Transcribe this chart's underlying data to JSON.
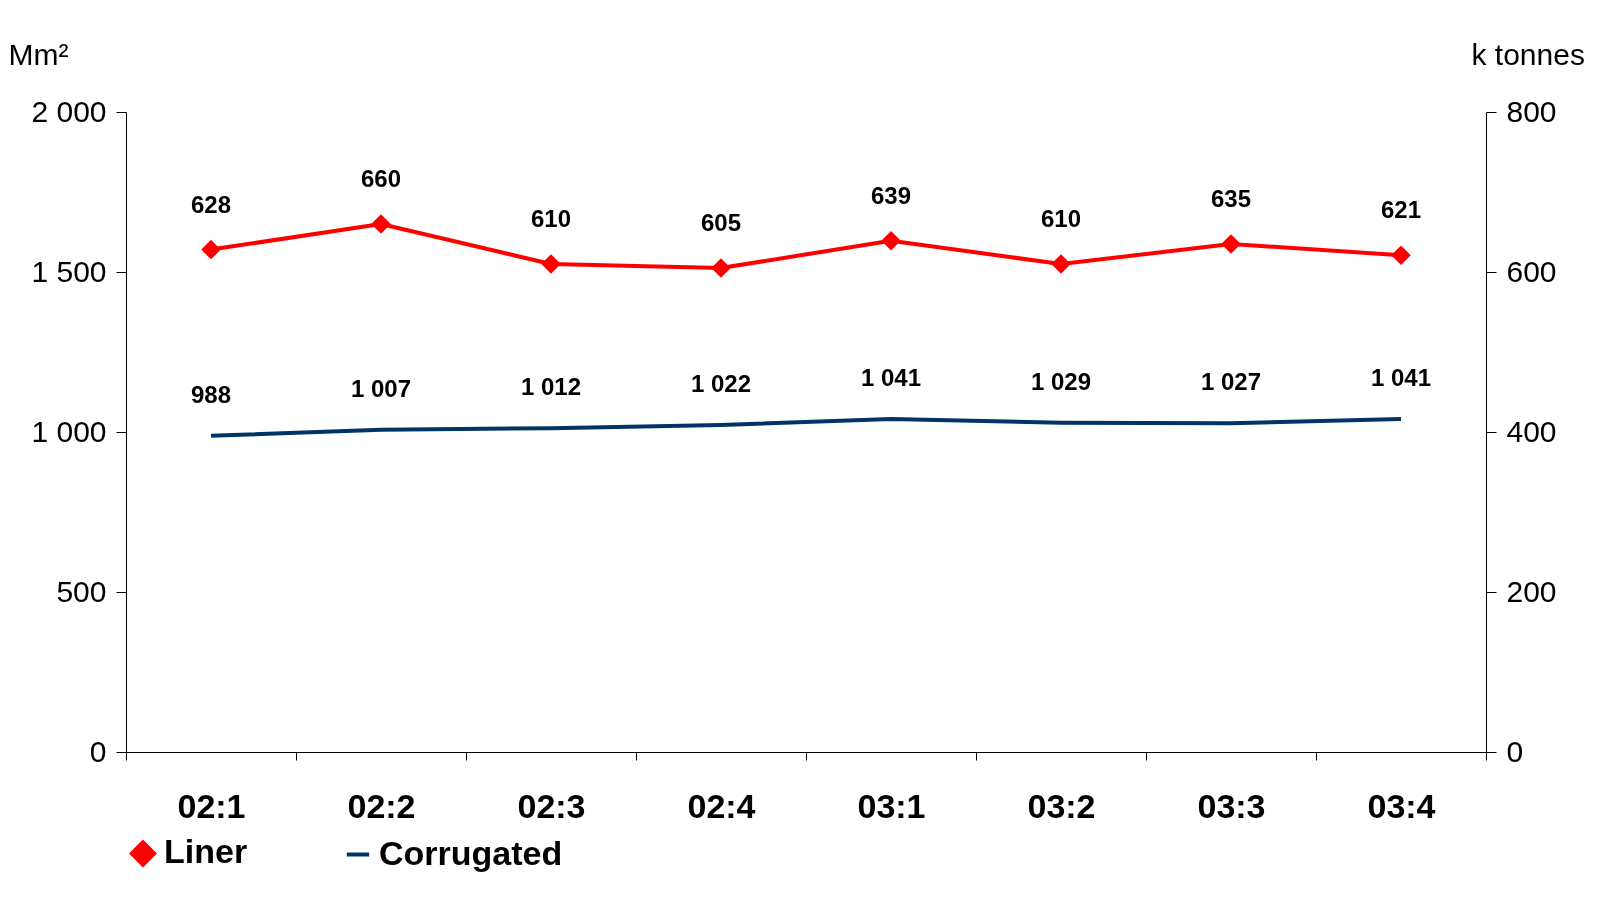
{
  "chart_data": {
    "type": "line",
    "ylabel": "Mm²",
    "y2label": "k tonnes",
    "categories": [
      "02:1",
      "02:2",
      "02:3",
      "02:4",
      "03:1",
      "03:2",
      "03:3",
      "03:4"
    ],
    "series": [
      {
        "name": "Liner",
        "color": "#ff0000",
        "axis": "y2",
        "marker": "diamond",
        "values": [
          628,
          660,
          610,
          605,
          639,
          610,
          635,
          621
        ],
        "value_labels": [
          "628",
          "660",
          "610",
          "605",
          "639",
          "610",
          "635",
          "621"
        ]
      },
      {
        "name": "Corrugated",
        "color": "#003366",
        "marker": "none",
        "values": [
          988,
          1007,
          1012,
          1022,
          1041,
          1029,
          1027,
          1041
        ],
        "value_labels": [
          "988",
          "1 007",
          "1 012",
          "1 022",
          "1 041",
          "1 029",
          "1 027",
          "1 041"
        ]
      }
    ],
    "ylim": [
      0,
      2000
    ],
    "yticks": [
      0,
      500,
      {
        "value": 1000,
        "label": "1 000"
      },
      {
        "value": 1500,
        "label": "1 500"
      },
      {
        "value": 2000,
        "label": "2 000"
      }
    ],
    "y2lim": [
      0,
      800
    ],
    "y2ticks": [
      0,
      200,
      400,
      600,
      800
    ],
    "grid": false,
    "legend": "bottom"
  }
}
